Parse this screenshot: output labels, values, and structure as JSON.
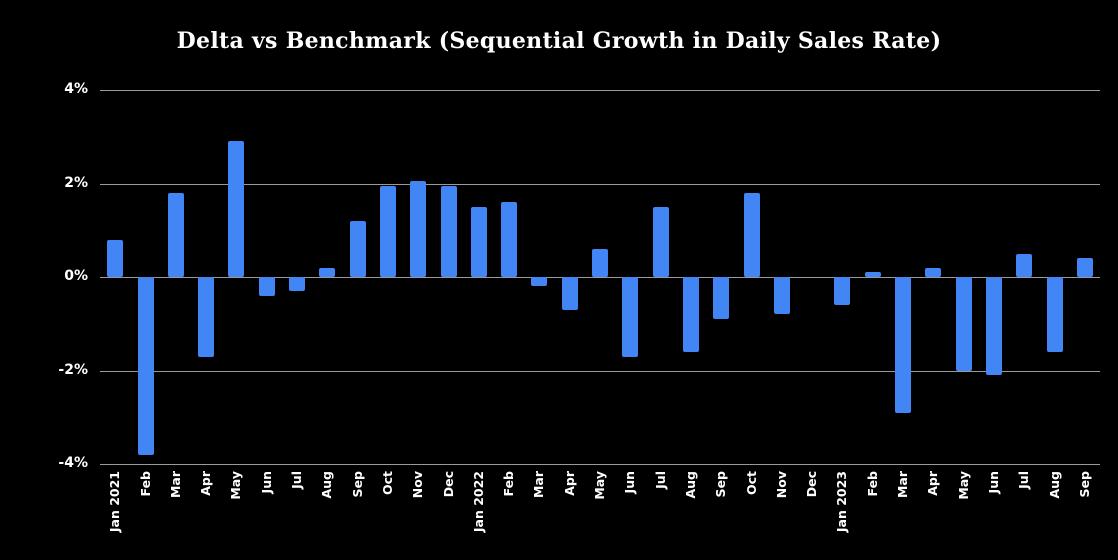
{
  "colors": {
    "background": "#000000",
    "bar": "#4285f4",
    "grid": "#9a9a9a",
    "text": "#ffffff"
  },
  "chart_data": {
    "type": "bar",
    "title": "Delta vs Benchmark (Sequential Growth in Daily Sales Rate)",
    "xlabel": "",
    "ylabel": "",
    "categories": [
      "Jan 2021",
      "Feb",
      "Mar",
      "Apr",
      "May",
      "Jun",
      "Jul",
      "Aug",
      "Sep",
      "Oct",
      "Nov",
      "Dec",
      "Jan 2022",
      "Feb",
      "Mar",
      "Apr",
      "May",
      "Jun",
      "Jul",
      "Aug",
      "Sep",
      "Oct",
      "Nov",
      "Dec",
      "Jan 2023",
      "Feb",
      "Mar",
      "Apr",
      "May",
      "Jun",
      "Jul",
      "Aug",
      "Sep"
    ],
    "values": [
      0.8,
      -3.8,
      1.8,
      -1.7,
      2.9,
      -0.4,
      -0.3,
      0.2,
      1.2,
      1.95,
      2.05,
      1.95,
      1.5,
      1.6,
      -0.2,
      -0.7,
      0.6,
      -1.7,
      1.5,
      -1.6,
      -0.9,
      1.8,
      -0.8,
      0.0,
      -0.6,
      0.1,
      -2.9,
      0.2,
      -2.0,
      -2.1,
      0.5,
      -1.6,
      0.4
    ],
    "ylim": [
      -4,
      4
    ],
    "yticks": [
      4,
      2,
      0,
      -2,
      -4
    ],
    "ytick_labels": [
      "4%",
      "2%",
      "0%",
      "-2%",
      "-4%"
    ],
    "grid": true,
    "legend": "none"
  }
}
